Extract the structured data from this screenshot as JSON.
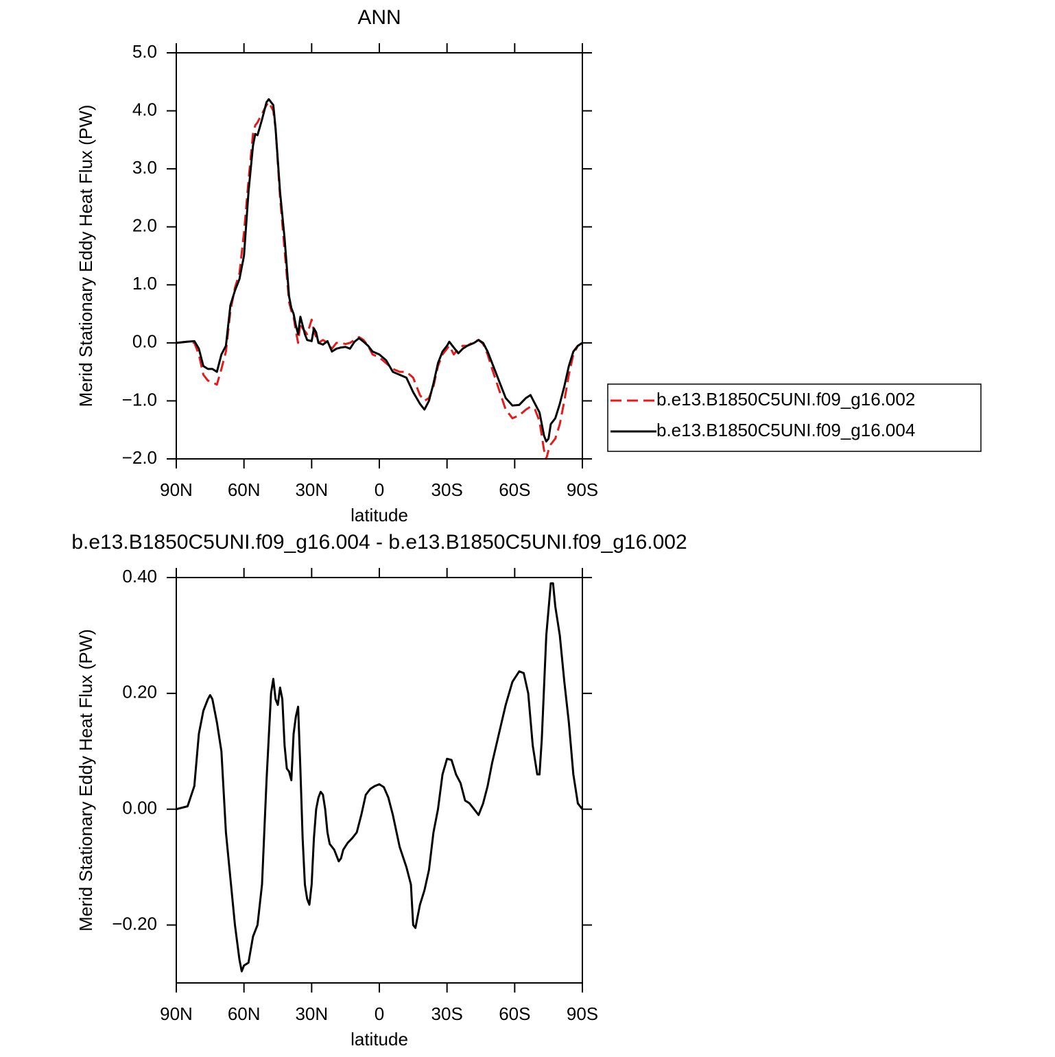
{
  "chart_data": [
    {
      "type": "line",
      "title": "ANN",
      "xlabel": "latitude",
      "ylabel": "Merid Stationary Eddy Heat Flux (PW)",
      "x": [
        90,
        85,
        82,
        80,
        78,
        76,
        74,
        72,
        70,
        68,
        66,
        64,
        62,
        60,
        58,
        56,
        55,
        54,
        52,
        50,
        49,
        47,
        46,
        44,
        42,
        40,
        39,
        38,
        37,
        36,
        35,
        34,
        33,
        32,
        30,
        29,
        28,
        27,
        25,
        23,
        21,
        19,
        17,
        15,
        13,
        11,
        9,
        7,
        5,
        3,
        0,
        -3,
        -6,
        -9,
        -12,
        -15,
        -18,
        -20,
        -22,
        -24,
        -26,
        -28,
        -30,
        -31,
        -33,
        -35,
        -37,
        -39,
        -42,
        -44,
        -46,
        -48,
        -50,
        -53,
        -56,
        -59,
        -62,
        -65,
        -67,
        -69,
        -71,
        -73,
        -74,
        -75,
        -76,
        -78,
        -80,
        -82,
        -84,
        -86,
        -88,
        -90
      ],
      "series": [
        {
          "name": "b.e13.B1850C5UNI.f09_g16.002",
          "color": "#e41a1c",
          "dash": "dashed",
          "values": [
            0,
            0.02,
            0.0,
            -0.2,
            -0.55,
            -0.65,
            -0.68,
            -0.72,
            -0.45,
            -0.15,
            0.55,
            0.95,
            1.2,
            1.9,
            2.8,
            3.6,
            3.75,
            3.8,
            3.95,
            4.1,
            4.15,
            4.0,
            3.7,
            2.5,
            1.6,
            0.7,
            0.55,
            0.45,
            0.2,
            0.0,
            0.35,
            0.25,
            0.2,
            0.15,
            0.4,
            0.2,
            0.1,
            0.0,
            0.05,
            0.0,
            -0.1,
            0.0,
            0.0,
            -0.02,
            0.0,
            0.05,
            0.1,
            0.05,
            -0.05,
            -0.2,
            -0.25,
            -0.35,
            -0.45,
            -0.5,
            -0.5,
            -0.6,
            -0.9,
            -1.0,
            -0.95,
            -0.75,
            -0.4,
            -0.2,
            -0.1,
            -0.05,
            -0.2,
            -0.1,
            -0.05,
            -0.05,
            0.02,
            0.05,
            -0.02,
            -0.2,
            -0.45,
            -0.8,
            -1.15,
            -1.3,
            -1.25,
            -1.15,
            -1.1,
            -1.15,
            -1.35,
            -1.85,
            -2.0,
            -1.85,
            -1.75,
            -1.65,
            -1.4,
            -1.0,
            -0.55,
            -0.2,
            -0.05,
            0
          ]
        },
        {
          "name": "b.e13.B1850C5UNI.f09_g16.004",
          "color": "#000000",
          "dash": "solid",
          "values": [
            0,
            0.02,
            0.03,
            -0.1,
            -0.4,
            -0.45,
            -0.45,
            -0.5,
            -0.2,
            -0.05,
            0.65,
            0.9,
            1.1,
            1.5,
            2.6,
            3.4,
            3.6,
            3.58,
            3.85,
            4.15,
            4.2,
            4.1,
            3.7,
            2.6,
            1.8,
            0.8,
            0.6,
            0.5,
            0.3,
            0.15,
            0.45,
            0.3,
            0.15,
            0.05,
            0.03,
            0.25,
            0.18,
            0.0,
            -0.03,
            0.03,
            -0.15,
            -0.1,
            -0.08,
            -0.07,
            -0.1,
            0.02,
            0.08,
            0.02,
            -0.05,
            -0.15,
            -0.2,
            -0.3,
            -0.5,
            -0.55,
            -0.6,
            -0.85,
            -1.05,
            -1.15,
            -1.0,
            -0.7,
            -0.35,
            -0.15,
            -0.05,
            0.02,
            -0.08,
            -0.18,
            -0.1,
            -0.05,
            0.0,
            0.05,
            0.0,
            -0.15,
            -0.35,
            -0.65,
            -0.95,
            -1.08,
            -1.07,
            -0.95,
            -0.9,
            -1.05,
            -1.2,
            -1.6,
            -1.7,
            -1.65,
            -1.4,
            -1.3,
            -1.05,
            -0.75,
            -0.4,
            -0.15,
            -0.05,
            0
          ]
        }
      ],
      "xlim": [
        90,
        -90
      ],
      "xticks": [
        {
          "value": 90,
          "label": "90N"
        },
        {
          "value": 60,
          "label": "60N"
        },
        {
          "value": 30,
          "label": "30N"
        },
        0,
        {
          "value": -30,
          "label": "30S"
        },
        {
          "value": -60,
          "label": "60S"
        },
        {
          "value": -90,
          "label": "90S"
        }
      ],
      "ylim": [
        -2,
        5
      ],
      "yticks": [
        {
          "value": 5,
          "label": "5.0"
        },
        {
          "value": 4,
          "label": "4.0"
        },
        {
          "value": 3,
          "label": "3.0"
        },
        {
          "value": 2,
          "label": "2.0"
        },
        {
          "value": 1,
          "label": "1.0"
        },
        {
          "value": 0,
          "label": "0.0"
        },
        {
          "value": -1,
          "label": "−1.0"
        },
        {
          "value": -2,
          "label": "−2.0"
        }
      ],
      "legend": "right"
    },
    {
      "type": "line",
      "title": "b.e13.B1850C5UNI.f09_g16.004 - b.e13.B1850C5UNI.f09_g16.002",
      "xlabel": "latitude",
      "ylabel": "Merid Stationary Eddy Heat Flux (PW)",
      "x": [
        90,
        85,
        82,
        80,
        78,
        76,
        75,
        74,
        72,
        70,
        68,
        66,
        64,
        62,
        61,
        60,
        58,
        56,
        54,
        52,
        50,
        48,
        47,
        46,
        45,
        44,
        43,
        42,
        41,
        40,
        39,
        38,
        37,
        36,
        35,
        34,
        33,
        32,
        31,
        30,
        29,
        28,
        27,
        26,
        25,
        24,
        23,
        22,
        20,
        18,
        17,
        16,
        14,
        12,
        10,
        8,
        6,
        4,
        2,
        0,
        -2,
        -4,
        -6,
        -9,
        -12,
        -14,
        -15,
        -16,
        -18,
        -20,
        -22,
        -24,
        -26,
        -28,
        -30,
        -32,
        -34,
        -36,
        -38,
        -40,
        -42,
        -44,
        -46,
        -48,
        -50,
        -53,
        -56,
        -59,
        -62,
        -64,
        -66,
        -68,
        -70,
        -71,
        -72,
        -74,
        -76,
        -77,
        -78,
        -80,
        -82,
        -84,
        -86,
        -88,
        -90
      ],
      "values": [
        0,
        0.005,
        0.04,
        0.13,
        0.17,
        0.19,
        0.197,
        0.19,
        0.15,
        0.1,
        -0.04,
        -0.12,
        -0.2,
        -0.26,
        -0.28,
        -0.27,
        -0.265,
        -0.22,
        -0.2,
        -0.13,
        0.05,
        0.2,
        0.225,
        0.19,
        0.18,
        0.21,
        0.19,
        0.11,
        0.07,
        0.065,
        0.05,
        0.13,
        0.16,
        0.177,
        0.07,
        -0.05,
        -0.13,
        -0.155,
        -0.165,
        -0.13,
        -0.05,
        0.0,
        0.02,
        0.03,
        0.025,
        0.0,
        -0.04,
        -0.06,
        -0.07,
        -0.09,
        -0.085,
        -0.07,
        -0.058,
        -0.05,
        -0.04,
        -0.01,
        0.025,
        0.035,
        0.04,
        0.043,
        0.038,
        0.02,
        -0.01,
        -0.065,
        -0.1,
        -0.13,
        -0.2,
        -0.205,
        -0.165,
        -0.14,
        -0.105,
        -0.04,
        0.0,
        0.06,
        0.087,
        0.085,
        0.06,
        0.045,
        0.015,
        0.01,
        0.0,
        -0.01,
        0.01,
        0.04,
        0.08,
        0.13,
        0.18,
        0.22,
        0.238,
        0.235,
        0.2,
        0.11,
        0.06,
        0.06,
        0.12,
        0.3,
        0.39,
        0.39,
        0.35,
        0.3,
        0.22,
        0.15,
        0.06,
        0.01,
        0
      ],
      "color": "#000000",
      "xlim": [
        90,
        -90
      ],
      "xticks": [
        {
          "value": 90,
          "label": "90N"
        },
        {
          "value": 60,
          "label": "60N"
        },
        {
          "value": 30,
          "label": "30N"
        },
        0,
        {
          "value": -30,
          "label": "30S"
        },
        {
          "value": -60,
          "label": "60S"
        },
        {
          "value": -90,
          "label": "90S"
        }
      ],
      "ylim": [
        -0.3,
        0.4
      ],
      "yticks": [
        {
          "value": 0.4,
          "label": "0.40"
        },
        {
          "value": 0.2,
          "label": "0.20"
        },
        {
          "value": 0,
          "label": "0.00"
        },
        {
          "value": -0.2,
          "label": "−0.20"
        }
      ]
    }
  ]
}
